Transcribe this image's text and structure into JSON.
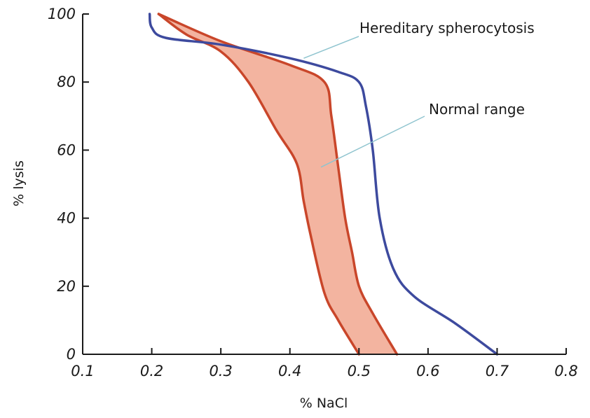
{
  "chart_data": {
    "type": "line",
    "xlabel": "% NaCl",
    "ylabel": "% lysis",
    "xlim": [
      0.1,
      0.8
    ],
    "ylim": [
      0,
      100
    ],
    "x_ticks": [
      {
        "value": 0.1,
        "label": "0.1"
      },
      {
        "value": 0.2,
        "label": "0.2"
      },
      {
        "value": 0.3,
        "label": "0.3"
      },
      {
        "value": 0.4,
        "label": "0.4"
      },
      {
        "value": 0.5,
        "label": "0.5"
      },
      {
        "value": 0.6,
        "label": "0.6"
      },
      {
        "value": 0.7,
        "label": "0.7"
      },
      {
        "value": 0.8,
        "label": "0.8"
      }
    ],
    "y_ticks": [
      {
        "value": 0,
        "label": "0"
      },
      {
        "value": 20,
        "label": "20"
      },
      {
        "value": 40,
        "label": "40"
      },
      {
        "value": 60,
        "label": "60"
      },
      {
        "value": 80,
        "label": "80"
      },
      {
        "value": 100,
        "label": "100"
      }
    ],
    "grid": false,
    "colors": {
      "hs_line": "#3d4a9e",
      "normal_line": "#c9462a",
      "normal_fill": "#f3b4a0",
      "axis": "#1a1a1a",
      "leader": "#8fc4cf"
    },
    "series": [
      {
        "name": "Hereditary spherocytosis",
        "type": "line",
        "points": [
          [
            0.197,
            100
          ],
          [
            0.2,
            96
          ],
          [
            0.22,
            93
          ],
          [
            0.3,
            91
          ],
          [
            0.4,
            87
          ],
          [
            0.47,
            83
          ],
          [
            0.5,
            80
          ],
          [
            0.51,
            73
          ],
          [
            0.52,
            60
          ],
          [
            0.53,
            40
          ],
          [
            0.55,
            25
          ],
          [
            0.58,
            17
          ],
          [
            0.64,
            9
          ],
          [
            0.7,
            0
          ]
        ]
      },
      {
        "name": "Normal range",
        "type": "band",
        "upper": [
          [
            0.21,
            100
          ],
          [
            0.3,
            92
          ],
          [
            0.4,
            85
          ],
          [
            0.45,
            80
          ],
          [
            0.46,
            70
          ],
          [
            0.47,
            55
          ],
          [
            0.48,
            40
          ],
          [
            0.49,
            30
          ],
          [
            0.5,
            20
          ],
          [
            0.52,
            12
          ],
          [
            0.555,
            0
          ]
        ],
        "lower": [
          [
            0.21,
            100
          ],
          [
            0.25,
            94
          ],
          [
            0.3,
            89
          ],
          [
            0.34,
            80
          ],
          [
            0.38,
            66
          ],
          [
            0.41,
            56
          ],
          [
            0.42,
            45
          ],
          [
            0.43,
            35
          ],
          [
            0.45,
            18
          ],
          [
            0.47,
            10
          ],
          [
            0.5,
            0
          ]
        ]
      }
    ],
    "annotations": [
      {
        "text": "Hereditary spherocytosis",
        "points_to": "Hereditary spherocytosis"
      },
      {
        "text": "Normal range",
        "points_to": "Normal range"
      }
    ]
  }
}
